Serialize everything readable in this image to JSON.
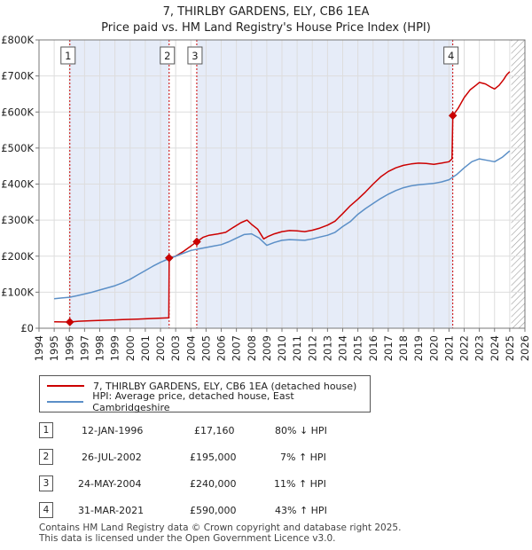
{
  "title_line1": "7, THIRLBY GARDENS, ELY, CB6 1EA",
  "title_line2": "Price paid vs. HM Land Registry's House Price Index (HPI)",
  "chart_data": {
    "type": "line",
    "title": "7, THIRLBY GARDENS, ELY, CB6 1EA",
    "subtitle": "Price paid vs. HM Land Registry's House Price Index (HPI)",
    "xlim": [
      1994,
      2026
    ],
    "ylim": [
      0,
      800000
    ],
    "x_ticks": [
      1994,
      1995,
      1996,
      1997,
      1998,
      1999,
      2000,
      2001,
      2002,
      2003,
      2004,
      2005,
      2006,
      2007,
      2008,
      2009,
      2010,
      2011,
      2012,
      2013,
      2014,
      2015,
      2016,
      2017,
      2018,
      2019,
      2020,
      2021,
      2022,
      2023,
      2024,
      2025,
      2026
    ],
    "y_ticks": [
      0,
      100000,
      200000,
      300000,
      400000,
      500000,
      600000,
      700000,
      800000
    ],
    "y_tick_labels": [
      "£0",
      "£100K",
      "£200K",
      "£300K",
      "£400K",
      "£500K",
      "£600K",
      "£700K",
      "£800K"
    ],
    "grid": true,
    "ownership_shading": [
      [
        1996.03,
        2002.57
      ],
      [
        2004.39,
        2021.25
      ]
    ],
    "hatched_after": 2025.1,
    "series": [
      {
        "name": "7, THIRLBY GARDENS, ELY, CB6 1EA (detached house)",
        "color": "#cc0000",
        "x": [
          1995.0,
          1996.03,
          1996.6,
          1997.5,
          1998.5,
          1999.5,
          2000.5,
          2001.5,
          2002.55,
          2002.57,
          2003.0,
          2003.5,
          2004.0,
          2004.39,
          2004.8,
          2005.2,
          2005.8,
          2006.3,
          2006.8,
          2007.3,
          2007.7,
          2008.0,
          2008.4,
          2008.8,
          2009.1,
          2009.5,
          2010.0,
          2010.5,
          2011.0,
          2011.5,
          2012.0,
          2012.5,
          2013.0,
          2013.5,
          2014.0,
          2014.5,
          2015.0,
          2015.5,
          2016.0,
          2016.5,
          2017.0,
          2017.5,
          2018.0,
          2018.5,
          2019.0,
          2019.5,
          2020.0,
          2020.5,
          2021.0,
          2021.2,
          2021.25,
          2021.6,
          2022.0,
          2022.4,
          2022.8,
          2023.0,
          2023.4,
          2023.8,
          2024.0,
          2024.3,
          2024.6,
          2024.8,
          2025.0
        ],
        "values": [
          18000,
          17160,
          19500,
          21000,
          22500,
          24000,
          25000,
          27000,
          29000,
          195000,
          200000,
          213000,
          228000,
          240000,
          252000,
          258000,
          262000,
          266000,
          280000,
          293000,
          300000,
          288000,
          275000,
          248000,
          255000,
          262000,
          268000,
          271000,
          270000,
          268000,
          272000,
          278000,
          286000,
          297000,
          318000,
          340000,
          358000,
          378000,
          400000,
          420000,
          435000,
          445000,
          452000,
          456000,
          458000,
          457000,
          455000,
          458000,
          462000,
          470000,
          590000,
          610000,
          640000,
          662000,
          675000,
          682000,
          678000,
          668000,
          664000,
          674000,
          690000,
          703000,
          712000
        ]
      },
      {
        "name": "HPI: Average price, detached house, East Cambridgeshire",
        "color": "#5b8fc7",
        "x": [
          1995.0,
          1995.5,
          1996.0,
          1996.5,
          1997.0,
          1997.5,
          1998.0,
          1998.5,
          1999.0,
          1999.5,
          2000.0,
          2000.5,
          2001.0,
          2001.5,
          2002.0,
          2002.5,
          2003.0,
          2003.5,
          2004.0,
          2004.5,
          2005.0,
          2005.5,
          2006.0,
          2006.5,
          2007.0,
          2007.5,
          2008.0,
          2008.5,
          2009.0,
          2009.5,
          2010.0,
          2010.5,
          2011.0,
          2011.5,
          2012.0,
          2012.5,
          2013.0,
          2013.5,
          2014.0,
          2014.5,
          2015.0,
          2015.5,
          2016.0,
          2016.5,
          2017.0,
          2017.5,
          2018.0,
          2018.5,
          2019.0,
          2019.5,
          2020.0,
          2020.5,
          2021.0,
          2021.5,
          2022.0,
          2022.5,
          2023.0,
          2023.5,
          2024.0,
          2024.5,
          2025.0
        ],
        "values": [
          82000,
          84000,
          86000,
          90000,
          95000,
          100000,
          106000,
          112000,
          118000,
          126000,
          136000,
          148000,
          160000,
          172000,
          183000,
          192000,
          200000,
          208000,
          216000,
          220000,
          224000,
          228000,
          232000,
          240000,
          250000,
          260000,
          262000,
          250000,
          230000,
          238000,
          244000,
          246000,
          245000,
          244000,
          248000,
          253000,
          258000,
          266000,
          282000,
          296000,
          316000,
          332000,
          346000,
          360000,
          372000,
          382000,
          390000,
          395000,
          398000,
          400000,
          402000,
          406000,
          412000,
          426000,
          445000,
          462000,
          470000,
          466000,
          462000,
          474000,
          492000
        ]
      }
    ],
    "sales": [
      {
        "label": "1",
        "x": 1996.03,
        "value": 17160
      },
      {
        "label": "2",
        "x": 2002.57,
        "value": 195000
      },
      {
        "label": "3",
        "x": 2004.39,
        "value": 240000
      },
      {
        "label": "4",
        "x": 2021.25,
        "value": 590000
      }
    ]
  },
  "legend": {
    "red_label": "7, THIRLBY GARDENS, ELY, CB6 1EA (detached house)",
    "blue_label": "HPI: Average price, detached house, East Cambridgeshire"
  },
  "table": [
    {
      "num": "1",
      "date": "12-JAN-1996",
      "price": "£17,160",
      "hpi": "80% ↓ HPI"
    },
    {
      "num": "2",
      "date": "26-JUL-2002",
      "price": "£195,000",
      "hpi": "7% ↑ HPI"
    },
    {
      "num": "3",
      "date": "24-MAY-2004",
      "price": "£240,000",
      "hpi": "11% ↑ HPI"
    },
    {
      "num": "4",
      "date": "31-MAR-2021",
      "price": "£590,000",
      "hpi": "43% ↑ HPI"
    }
  ],
  "footer_line1": "Contains HM Land Registry data © Crown copyright and database right 2025.",
  "footer_line2": "This data is licensed under the Open Government Licence v3.0."
}
